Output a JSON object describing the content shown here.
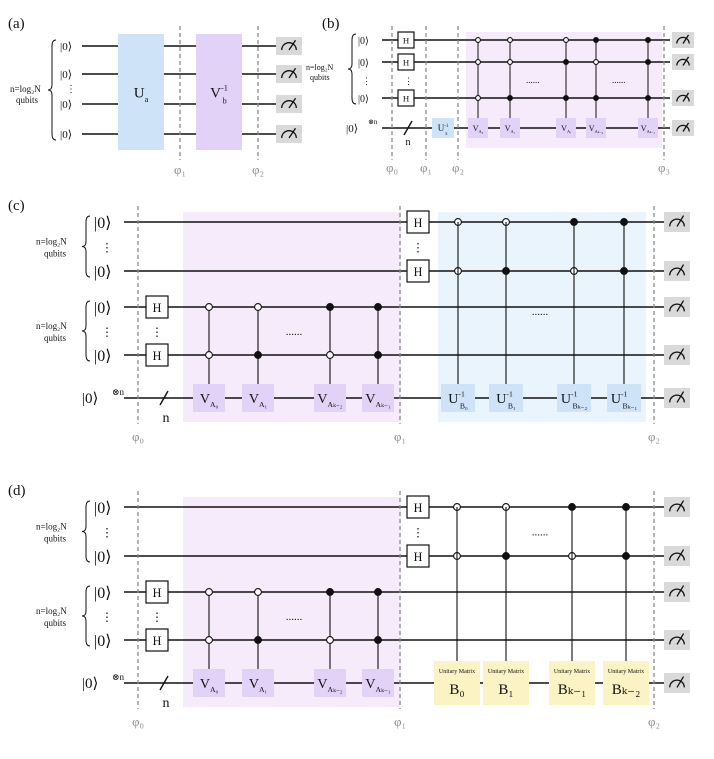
{
  "colors": {
    "wire": "#111111",
    "phase": "#8a8a8a",
    "u_block": "#cfe3f8",
    "v_block": "#e3d2f7",
    "purple_region": "#f6ebfb",
    "blue_region": "#e9f4fc",
    "meter_bg": "#d9d9d9",
    "yellow_block": "#fbf3c4"
  },
  "panels": {
    "a": {
      "label": "(a)",
      "kets": [
        "|0⟩",
        "|0⟩",
        "|0⟩",
        "|0⟩"
      ],
      "ket_dots": "⋮",
      "brace_text_1": "n=log₂N",
      "brace_text_2": "qubits",
      "u_block": {
        "base": "U",
        "sub": "a"
      },
      "v_block": {
        "base": "V",
        "sub": "b",
        "sup": "-1"
      },
      "phi": [
        "φ₁",
        "φ₂"
      ]
    },
    "b": {
      "label": "(b)",
      "kets": [
        "|0⟩",
        "|0⟩",
        "|0⟩"
      ],
      "ket_dots": "⋮",
      "brace_text_1": "n=log₂N",
      "brace_text_2": "qubits",
      "anc_ket": "|0⟩",
      "anc_sup": "⊗n",
      "h_label": "H",
      "n_label": "n",
      "ux_block": {
        "base": "U",
        "sub": "x",
        "sup": "-1"
      },
      "v_gates": [
        {
          "base": "V",
          "sub": "A₀"
        },
        {
          "base": "V",
          "sub": "A₁"
        },
        {
          "base": "V",
          "sub": "Aᵢ"
        },
        {
          "base": "V",
          "sub": "Aₖ₋₂"
        },
        {
          "base": "V",
          "sub": "Aₖ₋₁"
        }
      ],
      "dots": [
        "......",
        "......"
      ],
      "phi": [
        "φ₀",
        "φ₁",
        "φ₂",
        "φ₃"
      ]
    },
    "c": {
      "label": "(c)",
      "top_kets": [
        "|0⟩",
        "|0⟩"
      ],
      "bot_kets": [
        "|0⟩",
        "|0⟩"
      ],
      "ket_dots": "⋮",
      "brace_top_1": "n=log₂N",
      "brace_top_2": "qubits",
      "brace_bot_1": "n=log₂N",
      "brace_bot_2": "qubits",
      "anc_ket": "|0⟩",
      "anc_sup": "⊗n",
      "h_label": "H",
      "n_label": "n",
      "v_gates": [
        {
          "base": "V",
          "sub": "A₀"
        },
        {
          "base": "V",
          "sub": "A₁"
        },
        {
          "base": "V",
          "sub": "Aₖ₋₂"
        },
        {
          "base": "V",
          "sub": "Aₖ₋₁"
        }
      ],
      "u_gates": [
        {
          "base": "U",
          "sub": "B₀",
          "sup": "-1"
        },
        {
          "base": "U",
          "sub": "B₁",
          "sup": "-1"
        },
        {
          "base": "U",
          "sub": "Bₖ₋₂",
          "sup": "-1"
        },
        {
          "base": "U",
          "sub": "Bₖ₋₁",
          "sup": "-1"
        }
      ],
      "dots": [
        "......",
        "......"
      ],
      "phi": [
        "φ₀",
        "φ₁",
        "φ₂"
      ]
    },
    "d": {
      "label": "(d)",
      "top_kets": [
        "|0⟩",
        "|0⟩"
      ],
      "bot_kets": [
        "|0⟩",
        "|0⟩"
      ],
      "ket_dots": "⋮",
      "brace_top_1": "n=log₂N",
      "brace_top_2": "qubits",
      "brace_bot_1": "n=log₂N",
      "brace_bot_2": "qubits",
      "anc_ket": "|0⟩",
      "anc_sup": "⊗n",
      "h_label": "H",
      "n_label": "n",
      "v_gates": [
        {
          "base": "V",
          "sub": "A₀"
        },
        {
          "base": "V",
          "sub": "A₁"
        },
        {
          "base": "V",
          "sub": "Aₖ₋₂"
        },
        {
          "base": "V",
          "sub": "Aₖ₋₁"
        }
      ],
      "unitary_caption": "Unitary Matrix",
      "b_blocks": [
        "B₀",
        "B₁",
        "Bₖ₋₁",
        "Bₖ₋₂"
      ],
      "dots": [
        "......",
        "......"
      ],
      "phi": [
        "φ₀",
        "φ₁",
        "φ₂"
      ]
    }
  }
}
